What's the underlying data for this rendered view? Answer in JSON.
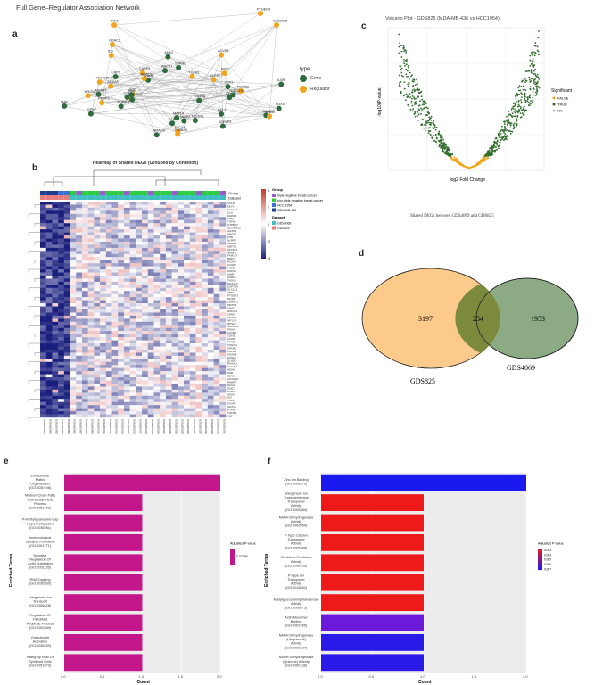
{
  "figure_title": "Full Gene–Regulator Association Network",
  "panel_labels": {
    "a": "a",
    "b": "b",
    "c": "c",
    "d": "d",
    "e": "e",
    "f": "f"
  },
  "network": {
    "legend_title": "type",
    "legend_items": [
      {
        "label": "Gene",
        "color": "#2e6b3f"
      },
      {
        "label": "Regulator",
        "color": "#f2a51c"
      }
    ],
    "gene_color": "#2e6b3f",
    "regulator_color": "#f2a51c",
    "node_labels": [
      "PTGER3",
      "GSE9025",
      "IRF3",
      "HDAC2",
      "NRGN",
      "PTPRJ",
      "ADAM8",
      "ELAVL2",
      "RARB",
      "SLC1A1",
      "ARHGEF3",
      "SOX4",
      "BCL2",
      "NCOR1",
      "CASP8",
      "MSRB3",
      "ANXA5",
      "SPARC",
      "ENO2",
      "ATF3",
      "LRP1",
      "HDAC9",
      "SLC22A1",
      "GPX7",
      "CBX3",
      "MGST1",
      "PEBP1",
      "TUBB2B",
      "SMAD3",
      "IL6R",
      "ANK2",
      "CDH1",
      "MMP2",
      "ABCA1",
      "NOTCH2",
      "HLF",
      "MAF",
      "CCND1",
      "KLF10",
      "IGFBP3",
      "ID3",
      "TGFB1",
      "RHOB",
      "ACVR1",
      "SCD",
      "NMI",
      "MAT1A"
    ]
  },
  "heatmap": {
    "title": "Heatmap of Shared DEGs (Grouped by Condition)",
    "legend_group_title": "Group",
    "legend_groups": [
      {
        "label": "triple negative breast cancer",
        "color": "#9b59d0"
      },
      {
        "label": "non-triple negative breast cancer",
        "color": "#2ecc40"
      },
      {
        "label": "HCC 1954",
        "color": "#3c6fd8"
      },
      {
        "label": "MDA-MB-436",
        "color": "#1f3d8f"
      }
    ],
    "legend_dataset_title": "Dataset",
    "legend_datasets": [
      {
        "label": "GDS4069",
        "color": "#3fbfbf"
      },
      {
        "label": "GDS825",
        "color": "#e67e7e"
      }
    ],
    "row_labels_left": "Group",
    "row_labels_left2": "Dataset",
    "gene_labels": [
      "KLF11",
      "MLF1",
      "SLC1A4",
      "CLU",
      "RAD9B",
      "CRKL",
      "TGFB1",
      "GTPBP2",
      "SLC38A10",
      "AGAP3",
      "ARGE1",
      "PXB",
      "NLRP3",
      "NMRB2",
      "MEF2D",
      "ATP2C1",
      "NRBP1",
      "FAM127",
      "BRD7",
      "ALOX5",
      "CASP8",
      "TUBB",
      "FARSA",
      "AIMP1",
      "FAM13",
      "TAGLN",
      "DNAJC2",
      "SUPT6H",
      "SLC1A1",
      "FBP1",
      "PTGER3",
      "MCM2",
      "ZDHHC1",
      "MRTFB",
      "SNAI2",
      "RNF214",
      "LPAR1",
      "ADAM7",
      "NPY2R",
      "RPS26",
      "SLC25A1",
      "PDIA6",
      "CCNE1",
      "CDH2",
      "GNA5",
      "PPIC3",
      "TFAP2C",
      "SPARC",
      "CALM3",
      "ADAM8",
      "KANK2",
      "DLAD2",
      "RASAL1",
      "ELAVL2",
      "ADH5",
      "SSB",
      "CD99",
      "ACCEA2",
      "PAWR7",
      "NAGA",
      "DSE1",
      "RAB35",
      "AP2A2",
      "ID3",
      "TCF3",
      "ACVR",
      "MAT1A",
      "PTPN1",
      "TGFBI1",
      "CAT"
    ],
    "col_labels": [
      "GSM200001",
      "GSM200002",
      "GSM200003",
      "GSM200004",
      "GSM200005",
      "GSM200006",
      "GSM200007",
      "GSM200008",
      "GSM200009",
      "GSM200010",
      "GSM200011",
      "GSM200012",
      "GSM200013",
      "GSM200014",
      "GSM200015",
      "GSM200016",
      "GSM200017",
      "GSM200018",
      "GSM200019",
      "GSM200020",
      "GSM200021",
      "GSM200022",
      "GSM200023",
      "GSM200024",
      "GSM200025",
      "GSM200026",
      "GSM200027",
      "GSM200028",
      "GSM200029",
      "GSM200030",
      "GSM200031"
    ],
    "colorbar_ticks": [
      "4",
      "2",
      "0",
      "-2",
      "-4"
    ]
  },
  "volcano": {
    "title": "Volcano Plot - GDS825 (MDA-MB-436 vs HCC1954)",
    "xlabel": "log2 Fold Change",
    "ylabel": "-log10(P-value)",
    "legend_title": "Significant",
    "legend_items": [
      {
        "label": "FALSE",
        "color": "#f5a31a"
      },
      {
        "label": "TRUE",
        "color": "#2f6b2a"
      },
      {
        "label": "NA",
        "color": "#bbbbbb"
      }
    ],
    "caption": "Shared DEGs between GDS4069 and GDS825"
  },
  "venn": {
    "left_label": "GDS825",
    "right_label": "GDS4069",
    "left_only": "3197",
    "overlap": "254",
    "right_only": "1953",
    "left_color": "#fcca8a",
    "right_color": "#7fa277"
  },
  "chart_data": [
    {
      "type": "bar",
      "panel": "e",
      "orientation": "horizontal",
      "categories": [
        "Extracellular Matrix Organization (GO:0030198)",
        "Medium-Chain Fatty Acid Biosynthetic Process (GO:0051792)",
        "P-Methylguanosine-Cap Hypermethylation (GO:0036261)",
        "Immunological Synapse Formation (GO:0001771)",
        "Negative Regulation Of Actin Nucleation (GO:0051126)",
        "RNA Capping (GO:0036260)",
        "Manganese Ion Transport (GO:0006828)",
        "Regulation Of Fibroblast Apoptotic Process (GO:2000269)",
        "Granulocyte Activation (GO:0036230)",
        "Killing By Host Of Symbiont Cells (GO:0051873)"
      ],
      "values": [
        2,
        1,
        1,
        1,
        1,
        1,
        1,
        1,
        1,
        1
      ],
      "xlabel": "Count",
      "ylabel": "Enriched Terms",
      "xlim": [
        0,
        2
      ],
      "xticks": [
        "0.0",
        "0.5",
        "1.0",
        "1.5",
        "2.0"
      ],
      "legend_title": "Adjusted P-value",
      "legend_tick": "0.07380",
      "bar_color": "#c2168a"
    },
    {
      "type": "bar",
      "panel": "f",
      "orientation": "horizontal",
      "categories": [
        "Zinc Ion Binding (GO:0008270)",
        "Manganese Ion Transmembrane Transporter Activity (GO:0005384)",
        "NADH Dehydrogenase Activity (GO:0003954)",
        "P-Type Calcium Transporter Activity (GO:0005388)",
        "Sheddase-Peptidase Activity (GO:0008236)",
        "P-Type Ion Transporter Activity (GO:0015662)",
        "Acetylglucosaminyltransferase Activity (GO:0008375)",
        "Actin Monomer Binding (GO:0003785)",
        "NADH Dehydrogenase (Ubiquinone) Activity (GO:0008137)",
        "NADH Dehydrogenase (Quinone) Activity (GO:0050136)"
      ],
      "values": [
        2,
        1,
        1,
        1,
        1,
        1,
        1,
        1,
        1,
        1
      ],
      "bar_colors": [
        "#1a1aee",
        "#ee1a1a",
        "#ee1a1a",
        "#ee1a1a",
        "#ee1a1a",
        "#ee1a1a",
        "#ee1a1a",
        "#6a1ad8",
        "#2a1ae8",
        "#2a1ae8"
      ],
      "xlabel": "Count",
      "ylabel": "Enriched Terms",
      "xlim": [
        0,
        2
      ],
      "xticks": [
        "0.0",
        "0.5",
        "1.0",
        "1.5",
        "2.0"
      ],
      "legend_title": "Adjusted P-value",
      "legend_ticks": [
        "0.053",
        "0.054",
        "0.055",
        "0.056",
        "0.057"
      ]
    }
  ]
}
